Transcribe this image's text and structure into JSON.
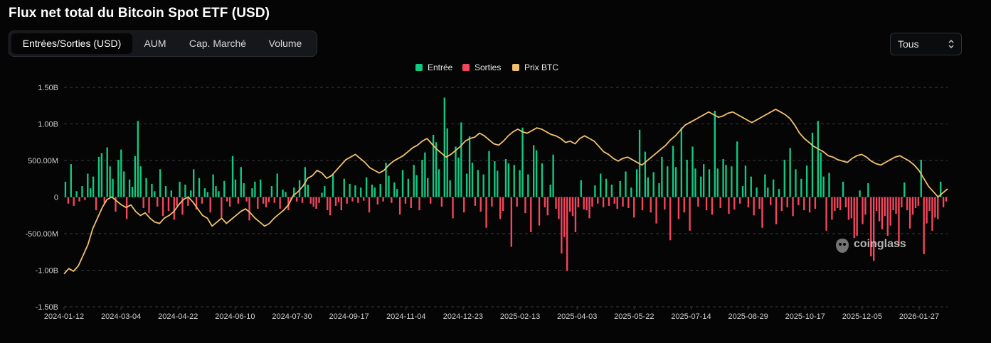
{
  "header": {
    "title": "Flux net total du Bitcoin Spot ETF (USD)"
  },
  "tabs": [
    {
      "label": "Entrées/Sorties (USD)",
      "active": true
    },
    {
      "label": "AUM",
      "active": false
    },
    {
      "label": "Cap. Marché",
      "active": false
    },
    {
      "label": "Volume",
      "active": false
    }
  ],
  "range_select": {
    "value": "Tous"
  },
  "watermark": {
    "text": "coinglass",
    "icon": "coinglass-logo-icon"
  },
  "colors": {
    "inflow": "#0ecb81",
    "outflow": "#f6465d",
    "price": "#f0c16c",
    "grid": "#3a3c42",
    "text": "#cfcfcf"
  },
  "chart_data": {
    "type": "bar",
    "title": "Flux net total du Bitcoin Spot ETF (USD)",
    "legend": [
      {
        "name": "Entrée",
        "color": "#0ecb81"
      },
      {
        "name": "Sorties",
        "color": "#f6465d"
      },
      {
        "name": "Prix BTC",
        "color": "#f0c16c"
      }
    ],
    "legend_position": "top-center",
    "grid": true,
    "ylim": [
      -1500000000,
      1500000000
    ],
    "y_ticks": [
      "1.50B",
      "1.00B",
      "500.00M",
      "0",
      "-500.00M",
      "-1.00B",
      "-1.50B"
    ],
    "x_ticks": [
      "2024-01-12",
      "2024-03-04",
      "2024-04-22",
      "2024-06-10",
      "2024-07-30",
      "2024-09-17",
      "2024-11-04",
      "2024-12-23",
      "2025-02-13",
      "2025-04-03",
      "2025-05-22",
      "2025-07-14",
      "2025-08-29",
      "2025-10-17",
      "2025-12-05",
      "2026-01-27"
    ],
    "series": [
      {
        "name": "Entrée / Sorties",
        "approx_daily_values_millions": [
          210,
          -90,
          450,
          -120,
          80,
          -60,
          150,
          -40,
          320,
          120,
          280,
          -180,
          550,
          600,
          -90,
          680,
          420,
          250,
          -200,
          510,
          650,
          350,
          -300,
          240,
          140,
          560,
          1040,
          420,
          -150,
          260,
          -220,
          180,
          80,
          -130,
          380,
          -260,
          150,
          -190,
          90,
          -310,
          -120,
          210,
          -240,
          170,
          -120,
          90,
          380,
          -170,
          260,
          -90,
          120,
          70,
          -210,
          310,
          150,
          80,
          -280,
          220,
          -60,
          -130,
          560,
          240,
          -90,
          410,
          190,
          -60,
          -320,
          120,
          210,
          -160,
          240,
          -90,
          -140,
          -70,
          150,
          -80,
          320,
          -160,
          100,
          70,
          -180,
          -40,
          130,
          -60,
          230,
          -80,
          410,
          170,
          -90,
          -130,
          -160,
          -80,
          60,
          150,
          -180,
          -250,
          310,
          -120,
          -70,
          -180,
          250,
          -90,
          180,
          -60,
          160,
          -80,
          130,
          -50,
          270,
          -210,
          170,
          130,
          -100,
          180,
          -60,
          470,
          290,
          -80,
          200,
          110,
          -240,
          370,
          -90,
          250,
          -150,
          440,
          300,
          -180,
          510,
          610,
          260,
          -90,
          850,
          750,
          380,
          -130,
          1360,
          940,
          230,
          -290,
          690,
          540,
          1020,
          -210,
          320,
          830,
          470,
          -120,
          370,
          -200,
          310,
          -420,
          630,
          -130,
          490,
          360,
          -300,
          -190,
          520,
          460,
          -680,
          440,
          -130,
          370,
          950,
          -220,
          310,
          -480,
          710,
          640,
          -390,
          460,
          -140,
          -250,
          170,
          580,
          -160,
          -300,
          -770,
          -550,
          -1010,
          -200,
          -260,
          -480,
          -140,
          230,
          -170,
          -180,
          -290,
          -130,
          160,
          -90,
          320,
          -140,
          250,
          -120,
          170,
          -90,
          -160,
          220,
          -130,
          350,
          -150,
          130,
          -280,
          380,
          920,
          -180,
          620,
          270,
          -210,
          340,
          -360,
          190,
          550,
          -170,
          420,
          -590,
          700,
          410,
          -300,
          950,
          -210,
          510,
          -460,
          690,
          390,
          -130,
          280,
          450,
          -180,
          380,
          -240,
          1180,
          390,
          -150,
          520,
          440,
          -230,
          420,
          -170,
          760,
          -90,
          150,
          430,
          -140,
          280,
          -250,
          130,
          -160,
          -420,
          310,
          130,
          -110,
          240,
          -370,
          110,
          -190,
          510,
          -140,
          670,
          -260,
          380,
          -110,
          250,
          -180,
          430,
          -210,
          880,
          -160,
          1040,
          610,
          280,
          -460,
          330,
          -310,
          -190,
          -150,
          -180,
          210,
          -140,
          -310,
          -290,
          -560,
          -530,
          90,
          -370,
          -240,
          190,
          -810,
          -870,
          -190,
          -330,
          -440,
          -260,
          -530,
          -390,
          -180,
          -230,
          -670,
          -140,
          200,
          -180,
          -430,
          -240,
          -150,
          -120,
          510,
          -780,
          -360,
          -190,
          -460,
          -280,
          -300,
          210,
          -140,
          -60
        ]
      },
      {
        "name": "Prix BTC",
        "approx_relative_price": [
          0.08,
          0.12,
          0.1,
          0.14,
          0.22,
          0.3,
          0.42,
          0.5,
          0.58,
          0.64,
          0.66,
          0.63,
          0.6,
          0.58,
          0.6,
          0.55,
          0.52,
          0.54,
          0.5,
          0.47,
          0.46,
          0.5,
          0.52,
          0.55,
          0.6,
          0.64,
          0.66,
          0.62,
          0.57,
          0.52,
          0.5,
          0.44,
          0.47,
          0.5,
          0.46,
          0.49,
          0.52,
          0.55,
          0.57,
          0.54,
          0.5,
          0.47,
          0.44,
          0.46,
          0.5,
          0.53,
          0.56,
          0.6,
          0.67,
          0.7,
          0.74,
          0.8,
          0.82,
          0.86,
          0.84,
          0.8,
          0.82,
          0.86,
          0.9,
          0.94,
          0.96,
          0.98,
          0.95,
          0.92,
          0.88,
          0.86,
          0.84,
          0.86,
          0.9,
          0.93,
          0.95,
          0.97,
          1.0,
          1.03,
          1.05,
          1.08,
          1.1,
          1.06,
          1.02,
          0.99,
          0.96,
          0.98,
          1.01,
          1.04,
          1.08,
          1.1,
          1.11,
          1.14,
          1.12,
          1.09,
          1.06,
          1.05,
          1.08,
          1.12,
          1.15,
          1.17,
          1.15,
          1.14,
          1.16,
          1.18,
          1.17,
          1.15,
          1.13,
          1.12,
          1.1,
          1.07,
          1.08,
          1.06,
          1.1,
          1.12,
          1.1,
          1.08,
          1.04,
          1.0,
          0.98,
          0.95,
          0.93,
          0.95,
          0.96,
          0.94,
          0.92,
          0.9,
          0.93,
          0.96,
          0.99,
          1.02,
          1.05,
          1.09,
          1.12,
          1.16,
          1.2,
          1.22,
          1.24,
          1.26,
          1.28,
          1.3,
          1.28,
          1.26,
          1.27,
          1.29,
          1.3,
          1.28,
          1.26,
          1.24,
          1.22,
          1.24,
          1.26,
          1.28,
          1.3,
          1.32,
          1.3,
          1.28,
          1.25,
          1.2,
          1.14,
          1.1,
          1.07,
          1.04,
          1.02,
          1.0,
          0.97,
          0.96,
          0.94,
          0.93,
          0.92,
          0.95,
          0.97,
          0.98,
          0.96,
          0.93,
          0.91,
          0.9,
          0.92,
          0.94,
          0.96,
          0.97,
          0.95,
          0.93,
          0.9,
          0.86,
          0.8,
          0.74,
          0.7,
          0.66,
          0.69,
          0.72
        ]
      }
    ]
  }
}
